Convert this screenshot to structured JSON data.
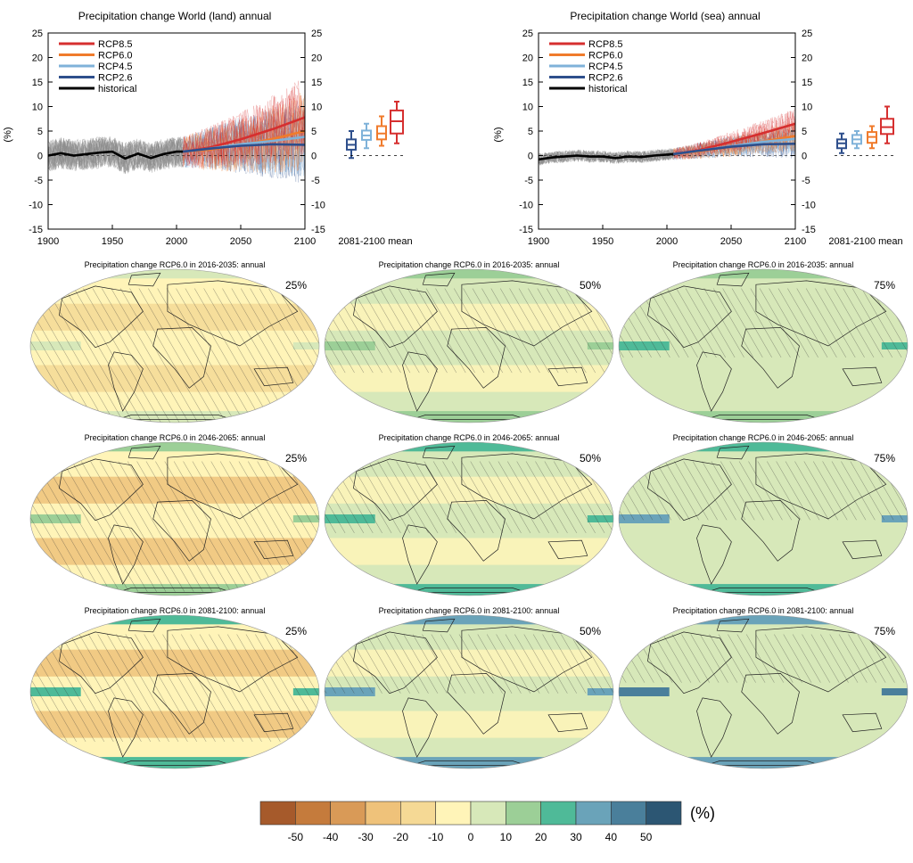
{
  "colors": {
    "rcp85": "#d62f2f",
    "rcp60": "#f07b2c",
    "rcp45": "#7fb2d9",
    "rcp26": "#2e4f8c",
    "historical": "#000000",
    "model_runs_hist": "#8c8c8c"
  },
  "chart_data": [
    {
      "type": "line",
      "title": "Precipitation change World (land) annual",
      "ylabel": "(%)",
      "xlim": [
        1900,
        2100
      ],
      "ylim": [
        -15,
        25
      ],
      "xticks": [
        1900,
        1950,
        2000,
        2050,
        2100
      ],
      "yticks": [
        -15,
        -10,
        -5,
        0,
        5,
        10,
        15,
        20,
        25
      ],
      "legend_position": "top-left",
      "legend": [
        "RCP8.5",
        "RCP6.0",
        "RCP4.5",
        "RCP2.6",
        "historical"
      ],
      "series": [
        {
          "name": "historical",
          "x": [
            1900,
            1910,
            1920,
            1930,
            1940,
            1950,
            1960,
            1970,
            1980,
            1990,
            2000,
            2005
          ],
          "values": [
            0,
            0.5,
            0,
            0.3,
            0.6,
            0.8,
            -0.6,
            0.4,
            -0.5,
            0.3,
            0.8,
            0.8
          ]
        },
        {
          "name": "RCP2.6",
          "x": [
            2005,
            2025,
            2050,
            2075,
            2100
          ],
          "values": [
            0.8,
            1.4,
            2.0,
            2.3,
            2.2
          ]
        },
        {
          "name": "RCP4.5",
          "x": [
            2005,
            2025,
            2050,
            2075,
            2100
          ],
          "values": [
            0.8,
            1.4,
            2.3,
            3.0,
            3.8
          ]
        },
        {
          "name": "RCP6.0",
          "x": [
            2005,
            2025,
            2050,
            2075,
            2100
          ],
          "values": [
            0.8,
            1.2,
            2.1,
            3.4,
            5.0
          ]
        },
        {
          "name": "RCP8.5",
          "x": [
            2005,
            2025,
            2050,
            2075,
            2100
          ],
          "values": [
            0.8,
            1.6,
            3.3,
            5.4,
            7.8
          ]
        }
      ],
      "boxplots": {
        "label": "2081-2100 mean",
        "order": [
          "RCP2.6",
          "RCP4.5",
          "RCP6.0",
          "RCP8.5"
        ],
        "boxes": [
          {
            "min": -0.5,
            "q1": 1.2,
            "median": 2.2,
            "q3": 3.3,
            "max": 5.0
          },
          {
            "min": 1.5,
            "q1": 3.2,
            "median": 4.1,
            "q3": 5.1,
            "max": 6.5
          },
          {
            "min": 2.0,
            "q1": 3.3,
            "median": 4.5,
            "q3": 6.0,
            "max": 8.0
          },
          {
            "min": 2.5,
            "q1": 4.5,
            "median": 7.0,
            "q3": 9.2,
            "max": 11.0
          }
        ]
      }
    },
    {
      "type": "line",
      "title": "Precipitation change World (sea) annual",
      "ylabel": "(%)",
      "xlim": [
        1900,
        2100
      ],
      "ylim": [
        -15,
        25
      ],
      "xticks": [
        1900,
        1950,
        2000,
        2050,
        2100
      ],
      "yticks": [
        -15,
        -10,
        -5,
        0,
        5,
        10,
        15,
        20,
        25
      ],
      "legend_position": "top-left",
      "legend": [
        "RCP8.5",
        "RCP6.0",
        "RCP4.5",
        "RCP2.6",
        "historical"
      ],
      "series": [
        {
          "name": "historical",
          "x": [
            1900,
            1910,
            1920,
            1930,
            1940,
            1950,
            1960,
            1970,
            1980,
            1990,
            2000,
            2005
          ],
          "values": [
            -0.8,
            -0.4,
            -0.2,
            0,
            -0.2,
            -0.2,
            -0.5,
            -0.2,
            -0.3,
            0,
            0.2,
            0.3
          ]
        },
        {
          "name": "RCP2.6",
          "x": [
            2005,
            2025,
            2050,
            2075,
            2100
          ],
          "values": [
            0.3,
            1.0,
            1.8,
            2.3,
            2.4
          ]
        },
        {
          "name": "RCP4.5",
          "x": [
            2005,
            2025,
            2050,
            2075,
            2100
          ],
          "values": [
            0.3,
            1.0,
            1.9,
            2.8,
            3.4
          ]
        },
        {
          "name": "RCP6.0",
          "x": [
            2005,
            2025,
            2050,
            2075,
            2100
          ],
          "values": [
            0.3,
            0.9,
            1.8,
            2.9,
            4.0
          ]
        },
        {
          "name": "RCP8.5",
          "x": [
            2005,
            2025,
            2050,
            2075,
            2100
          ],
          "values": [
            0.3,
            1.1,
            2.8,
            4.6,
            6.5
          ]
        }
      ],
      "boxplots": {
        "label": "2081-2100 mean",
        "order": [
          "RCP2.6",
          "RCP4.5",
          "RCP6.0",
          "RCP8.5"
        ],
        "boxes": [
          {
            "min": 0.5,
            "q1": 1.5,
            "median": 2.5,
            "q3": 3.3,
            "max": 4.5
          },
          {
            "min": 1.5,
            "q1": 2.4,
            "median": 3.3,
            "q3": 4.2,
            "max": 5.0
          },
          {
            "min": 1.5,
            "q1": 2.6,
            "median": 3.8,
            "q3": 4.8,
            "max": 6.0
          },
          {
            "min": 2.5,
            "q1": 4.4,
            "median": 5.8,
            "q3": 7.5,
            "max": 10.0
          }
        ]
      }
    },
    {
      "type": "heatmap",
      "description_of_panels": "world maps, rows by period, columns by percentile",
      "panels": [
        {
          "title": "Precipitation change RCP6.0 in 2016-2035: annual",
          "percentile": "25%"
        },
        {
          "title": "Precipitation change RCP6.0 in 2016-2035: annual",
          "percentile": "50%"
        },
        {
          "title": "Precipitation change RCP6.0 in 2016-2035: annual",
          "percentile": "75%"
        },
        {
          "title": "Precipitation change RCP6.0 in 2046-2065: annual",
          "percentile": "25%"
        },
        {
          "title": "Precipitation change RCP6.0 in 2046-2065: annual",
          "percentile": "50%"
        },
        {
          "title": "Precipitation change RCP6.0 in 2046-2065: annual",
          "percentile": "75%"
        },
        {
          "title": "Precipitation change RCP6.0 in 2081-2100: annual",
          "percentile": "25%"
        },
        {
          "title": "Precipitation change RCP6.0 in 2081-2100: annual",
          "percentile": "50%"
        },
        {
          "title": "Precipitation change RCP6.0 in 2081-2100: annual",
          "percentile": "75%"
        }
      ],
      "colorbar": {
        "unit": "(%)",
        "ticks": [
          "-50",
          "-40",
          "-30",
          "-20",
          "-10",
          "0",
          "10",
          "20",
          "30",
          "40",
          "50"
        ],
        "colors": [
          "#a65a2b",
          "#c57b3c",
          "#d99a57",
          "#efc27a",
          "#f5d995",
          "#fff4b8",
          "#d7e8b9",
          "#9ccf97",
          "#4fba98",
          "#6aa3b9",
          "#4a7f9b",
          "#2c5673"
        ]
      }
    }
  ]
}
